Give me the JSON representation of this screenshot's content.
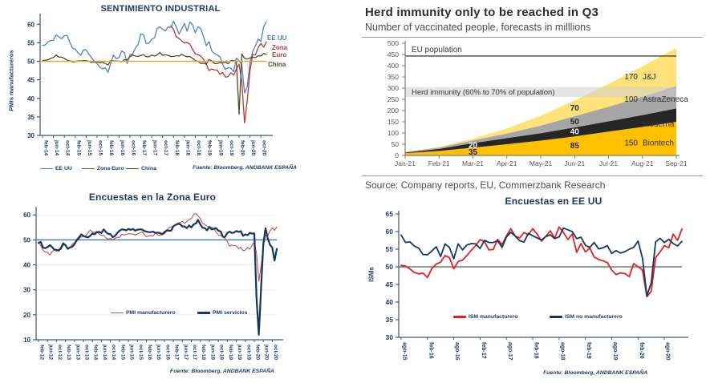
{
  "chart_data": [
    {
      "id": "sentimiento-industrial",
      "type": "line",
      "title": "SENTIMIENTO INDUSTRIAL",
      "ylabel": "PMIs manufactureros",
      "fuente": "Fuente: Bloomberg, ANDBANK ESPAÑA",
      "ylim": [
        30,
        62
      ],
      "yticks": [
        30,
        35,
        40,
        45,
        50,
        55,
        60
      ],
      "xlabels": [
        "feb-14",
        "jun-14",
        "oct-14",
        "feb-15",
        "jun-15",
        "oct-15",
        "feb-16",
        "jun-16",
        "oct-16",
        "feb-17",
        "jun-17",
        "oct-17",
        "feb-18",
        "jun-18",
        "oct-18",
        "feb-19",
        "jun-19",
        "oct-19",
        "feb-20",
        "jun-20",
        "oct-20"
      ],
      "xlabel_step": 4,
      "n_points": 83,
      "legend_position": "bottom",
      "grid": false,
      "hline": {
        "value": 50,
        "color": "#e8a33c",
        "width": 1.6,
        "on_top": true
      },
      "series": [
        {
          "name": "EE UU",
          "color": "#4f81bd",
          "width": 1.3,
          "start": 0,
          "values": [
            54.3,
            54.4,
            55.3,
            55.6,
            55.7,
            57.1,
            56.6,
            56.1,
            56.9,
            57.0,
            55.1,
            53.5,
            53.3,
            52.3,
            51.6,
            53.1,
            53.1,
            51.9,
            51.0,
            50.0,
            49.4,
            48.4,
            48.0,
            48.2,
            47.0,
            49.5,
            51.7,
            50.7,
            51.0,
            52.8,
            52.3,
            49.4,
            51.7,
            52.0,
            53.5,
            54.5,
            57.4,
            57.2,
            54.8,
            54.9,
            56.0,
            56.3,
            58.8,
            59.3,
            58.7,
            58.2,
            59.3,
            59.1,
            60.8,
            59.3,
            57.3,
            58.7,
            60.2,
            58.1,
            60.6,
            59.8,
            57.7,
            59.3,
            58.8,
            56.6,
            54.2,
            55.3,
            52.8,
            52.1,
            51.7,
            51.2,
            49.1,
            47.8,
            48.3,
            48.1,
            47.2,
            50.9,
            50.1,
            49.1,
            41.5,
            43.1,
            49.6,
            52.6,
            54.2,
            56.0,
            55.4,
            59.3,
            60.7
          ]
        },
        {
          "name": "Zona Euro",
          "color": "#b23b38",
          "width": 1.3,
          "start": 47,
          "values": [
            59.6,
            58.6,
            56.6,
            56.2,
            55.5,
            54.9,
            55.1,
            54.6,
            53.2,
            52.0,
            51.8,
            51.4,
            50.5,
            49.3,
            47.5,
            47.9,
            47.7,
            47.6,
            46.5,
            47.0,
            45.7,
            45.9,
            46.9,
            46.3,
            47.9,
            49.2,
            44.5,
            33.4,
            39.4,
            47.4,
            51.8,
            51.7,
            53.7,
            54.8,
            53.8,
            55.2
          ]
        },
        {
          "name": "China",
          "color": "#4e4d26",
          "width": 1.3,
          "start": 0,
          "values": [
            50.2,
            50.3,
            50.4,
            50.8,
            51.0,
            51.7,
            51.1,
            51.1,
            50.8,
            50.3,
            50.1,
            49.8,
            49.9,
            50.1,
            50.1,
            50.2,
            50.2,
            50.0,
            49.7,
            49.8,
            49.8,
            49.6,
            49.7,
            49.4,
            49.0,
            50.2,
            50.1,
            50.1,
            50.0,
            49.9,
            50.4,
            50.4,
            51.2,
            51.7,
            51.4,
            51.3,
            51.6,
            51.8,
            51.2,
            51.2,
            51.7,
            51.4,
            51.7,
            52.4,
            51.6,
            51.8,
            51.6,
            51.3,
            51.3,
            51.5,
            51.4,
            51.9,
            51.5,
            51.2,
            51.3,
            50.8,
            50.2,
            50.0,
            49.4,
            49.5,
            49.2,
            50.5,
            50.1,
            49.4,
            49.4,
            49.7,
            49.5,
            49.8,
            49.3,
            50.2,
            50.2,
            50.0,
            35.7,
            52.0,
            50.8,
            50.6,
            50.9,
            51.1,
            51.0,
            51.5,
            51.4,
            52.1,
            51.9
          ]
        }
      ],
      "right_labels": [
        {
          "text": "EE UU",
          "color": "#4f81bd"
        },
        {
          "text": "Zona",
          "color": "#b23b38"
        },
        {
          "text": "Euro",
          "color": "#b23b38"
        },
        {
          "text": "China",
          "color": "#4e4d26"
        }
      ]
    },
    {
      "id": "herd-immunity",
      "type": "stacked_area",
      "title": "Herd immunity only to be reached in Q3",
      "subtitle": "Number of vaccinated people, forecasts in milllions",
      "source": "Source: Company reports, EU, Commerzbank Research",
      "ylim": [
        0,
        500
      ],
      "yticks": [
        0,
        50,
        100,
        150,
        200,
        250,
        300,
        350,
        400,
        450,
        500
      ],
      "xlabels": [
        "Jan-21",
        "Feb-21",
        "Mar-21",
        "Apr-21",
        "May-21",
        "Jun-21",
        "Jul-21",
        "Aug-21",
        "Sep-21"
      ],
      "series": [
        {
          "name": "Biontech",
          "color": "#ffc000",
          "end_value": 150,
          "values": [
            10,
            20,
            35,
            50,
            66,
            85,
            106,
            127,
            150
          ]
        },
        {
          "name": "Moderna",
          "color": "#262626",
          "end_value": 60,
          "values": [
            3,
            9,
            20,
            27,
            33,
            40,
            46,
            53,
            60
          ]
        },
        {
          "name": "AstraZeneca",
          "color": "#a6a6a6",
          "end_value": 100,
          "values": [
            2,
            6,
            12,
            21,
            34,
            50,
            65,
            82,
            100
          ]
        },
        {
          "name": "J&J",
          "color": "#ffe27a",
          "end_value": 170,
          "values": [
            1,
            3,
            8,
            22,
            44,
            70,
            102,
            135,
            170
          ]
        }
      ],
      "eu_population": {
        "label": "EU population",
        "value": 443
      },
      "herd_band": {
        "label": "Herd immunity (60% to 70% of population)",
        "from": 260,
        "to": 305
      },
      "area_labels": [
        {
          "x": 2,
          "value": 45,
          "text": "20",
          "color": "#ffffff"
        },
        {
          "x": 2,
          "value": 14,
          "text": "35",
          "color": "#262626"
        },
        {
          "x": 5,
          "value": 210,
          "text": "70",
          "color": "#262626"
        },
        {
          "x": 5,
          "value": 150,
          "text": "50",
          "color": "#262626"
        },
        {
          "x": 5,
          "value": 105,
          "text": "40",
          "color": "#ffffff"
        },
        {
          "x": 5,
          "value": 42,
          "text": "85",
          "color": "#262626"
        }
      ],
      "right_labels": [
        {
          "value": "170",
          "name": "J&J",
          "at": 350
        },
        {
          "value": "100",
          "name": "AstraZeneca",
          "at": 250
        },
        {
          "value": "60",
          "name": "Moderna",
          "at": 140
        },
        {
          "value": "150",
          "name": "Biontech",
          "at": 55
        }
      ]
    },
    {
      "id": "encuestas-zona-euro",
      "type": "line",
      "title": "Encuestas en la Zona Euro",
      "fuente": "Fuente: Bloomberg, ANDBANK ESPAÑA",
      "ylim": [
        10,
        62
      ],
      "yticks": [
        10,
        20,
        30,
        40,
        50,
        60
      ],
      "xlabels": [
        "feb-12",
        "jun-12",
        "oct-12",
        "feb-13",
        "jun-13",
        "oct-13",
        "feb-14",
        "jun-14",
        "oct-14",
        "feb-15",
        "jun-15",
        "oct-15",
        "feb-16",
        "jun-16",
        "oct-16",
        "feb-17",
        "jun-17",
        "oct-17",
        "feb-18",
        "jun-18",
        "oct-18",
        "feb-19",
        "jun-19",
        "oct-19",
        "feb-20",
        "jun-20",
        "oct-20"
      ],
      "xlabel_step": 4,
      "n_points": 107,
      "legend_position": "inside",
      "grid": true,
      "hline": {
        "value": 50,
        "color": "#4f81bd",
        "width": 1.5,
        "on_top": false
      },
      "series": [
        {
          "name": "PMI manufacturero",
          "color": "#c0504d",
          "width": 1.1,
          "start": 0,
          "values": [
            49.0,
            47.7,
            45.9,
            45.1,
            45.1,
            44.0,
            45.1,
            46.1,
            45.4,
            46.2,
            46.1,
            47.9,
            47.9,
            46.8,
            46.7,
            48.3,
            48.8,
            50.3,
            51.4,
            51.1,
            51.3,
            51.6,
            52.7,
            54.0,
            53.2,
            53.0,
            53.4,
            52.2,
            51.8,
            51.8,
            50.7,
            50.3,
            50.6,
            50.1,
            50.6,
            51.0,
            51.0,
            52.2,
            52.0,
            52.2,
            52.5,
            52.4,
            52.3,
            52.0,
            52.3,
            52.8,
            53.2,
            52.3,
            51.2,
            51.6,
            51.7,
            51.5,
            52.8,
            52.0,
            51.7,
            52.6,
            53.5,
            53.7,
            54.9,
            55.2,
            55.4,
            56.2,
            56.7,
            57.0,
            57.4,
            56.6,
            57.4,
            58.1,
            58.5,
            60.1,
            60.6,
            59.6,
            58.6,
            56.6,
            56.2,
            55.5,
            54.9,
            55.1,
            54.6,
            53.2,
            52.0,
            51.8,
            51.4,
            50.5,
            49.3,
            47.5,
            47.9,
            47.7,
            47.6,
            46.5,
            47.0,
            45.7,
            45.9,
            46.9,
            46.3,
            47.9,
            49.2,
            44.5,
            33.4,
            39.4,
            47.4,
            51.8,
            51.7,
            53.7,
            54.8,
            53.8,
            55.2
          ]
        },
        {
          "name": "PMI servicios",
          "color": "#16365c",
          "width": 2.2,
          "start": 0,
          "values": [
            48.8,
            49.2,
            46.9,
            46.7,
            47.1,
            47.9,
            47.2,
            46.1,
            46.0,
            45.7,
            46.8,
            48.6,
            47.9,
            46.4,
            47.0,
            47.2,
            48.3,
            49.8,
            50.7,
            52.2,
            51.6,
            51.2,
            51.0,
            51.6,
            52.6,
            52.2,
            53.1,
            53.2,
            52.8,
            54.2,
            53.1,
            52.4,
            52.3,
            51.1,
            51.6,
            52.7,
            53.7,
            54.2,
            54.1,
            53.8,
            54.4,
            54.0,
            54.4,
            53.7,
            54.1,
            54.2,
            54.2,
            53.6,
            53.3,
            53.1,
            53.1,
            53.3,
            52.8,
            52.9,
            52.8,
            52.2,
            52.8,
            53.8,
            53.7,
            53.7,
            55.5,
            56.0,
            56.4,
            56.3,
            55.4,
            55.4,
            54.7,
            55.8,
            55.0,
            56.2,
            56.6,
            58.0,
            56.2,
            54.9,
            54.7,
            53.8,
            55.2,
            54.2,
            54.4,
            54.7,
            53.7,
            53.4,
            51.2,
            51.2,
            52.8,
            53.3,
            52.8,
            52.9,
            53.6,
            53.2,
            53.5,
            51.6,
            52.2,
            51.9,
            52.8,
            52.5,
            52.6,
            26.4,
            12.0,
            30.5,
            48.3,
            54.7,
            50.5,
            48.0,
            46.9,
            41.7,
            46.4
          ]
        }
      ]
    },
    {
      "id": "encuestas-eeuu",
      "type": "line",
      "title": "Encuestas en EE UU",
      "ylabel": "ISMs",
      "fuente": "Fuente: Bloomberg, ANDBANK ESPAÑA",
      "ylim": [
        30,
        65
      ],
      "yticks": [
        30,
        35,
        40,
        45,
        50,
        55,
        60,
        65
      ],
      "xlabels": [
        "ago-15",
        "feb-16",
        "ago-16",
        "feb-17",
        "ago-17",
        "feb-18",
        "ago-18",
        "feb-19",
        "ago-19",
        "feb-20",
        "ago-20"
      ],
      "xlabel_step": 6,
      "n_points": 65,
      "legend_position": "inside",
      "grid": false,
      "hline": {
        "value": 50,
        "color": "#595959",
        "width": 1.3,
        "on_top": false
      },
      "series": [
        {
          "name": "ISM manufacturero",
          "color": "#e02222",
          "width": 1.8,
          "start": 0,
          "values": [
            50.4,
            50.2,
            49.4,
            48.4,
            48.0,
            48.2,
            47.0,
            49.5,
            50.8,
            51.3,
            53.2,
            52.6,
            49.4,
            51.5,
            51.9,
            53.2,
            54.7,
            56.0,
            57.7,
            57.2,
            54.8,
            54.9,
            57.8,
            56.3,
            58.8,
            60.8,
            58.7,
            58.2,
            59.7,
            59.1,
            60.8,
            59.3,
            57.3,
            58.7,
            60.2,
            58.1,
            61.3,
            59.8,
            57.7,
            59.3,
            54.1,
            56.6,
            54.2,
            55.3,
            52.8,
            52.1,
            51.7,
            51.2,
            49.1,
            47.8,
            48.3,
            48.1,
            47.2,
            50.9,
            50.1,
            49.1,
            41.5,
            43.1,
            52.6,
            54.2,
            56.0,
            55.4,
            59.3,
            57.5,
            60.7
          ]
        },
        {
          "name": "ISM no manufacturero",
          "color": "#17375e",
          "width": 1.8,
          "start": 0,
          "values": [
            59.0,
            56.9,
            57.1,
            55.9,
            55.3,
            53.5,
            53.4,
            54.5,
            55.7,
            52.9,
            56.5,
            55.5,
            52.3,
            56.5,
            54.8,
            56.2,
            56.6,
            56.5,
            55.2,
            57.5,
            56.9,
            56.9,
            57.4,
            55.5,
            58.5,
            59.8,
            58.7,
            57.4,
            57.0,
            59.5,
            58.8,
            58.2,
            57.6,
            58.6,
            59.1,
            58.0,
            58.5,
            61.0,
            60.5,
            60.0,
            58.0,
            58.4,
            56.1,
            55.5,
            56.9,
            55.1,
            55.4,
            56.0,
            53.8,
            54.6,
            53.9,
            54.3,
            55.0,
            55.5,
            57.3,
            52.5,
            41.8,
            45.4,
            57.1,
            58.1,
            56.9,
            57.8,
            56.6,
            55.9,
            57.2
          ]
        }
      ]
    }
  ],
  "colors": {
    "navy": "#1f3864",
    "axis_navy": "#44546a",
    "axis_gray": "#7f7f7f",
    "tick_gray": "#595959",
    "band_gray": "#cfcfcf",
    "eu_line": "#404040"
  }
}
